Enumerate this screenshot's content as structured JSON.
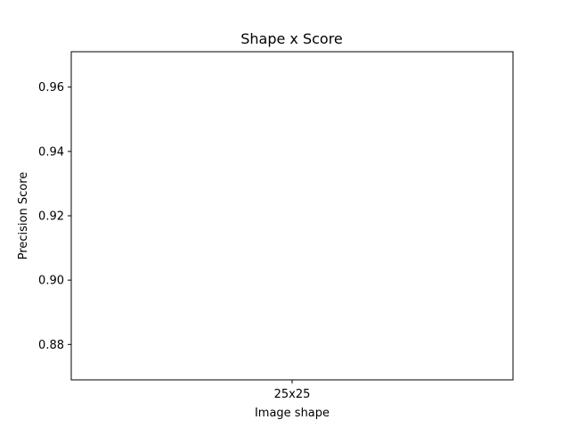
{
  "chart_data": {
    "type": "scatter",
    "title": "Shape x Score",
    "xlabel": "Image shape",
    "ylabel": "Precision Score",
    "categories": [
      "25x25"
    ],
    "x": [],
    "y": [],
    "yticks": [
      0.88,
      0.9,
      0.92,
      0.94,
      0.96
    ],
    "ytick_labels": [
      "0.88",
      "0.90",
      "0.92",
      "0.94",
      "0.96"
    ],
    "ylim": [
      0.869,
      0.971
    ],
    "grid": false,
    "legend": "none"
  }
}
